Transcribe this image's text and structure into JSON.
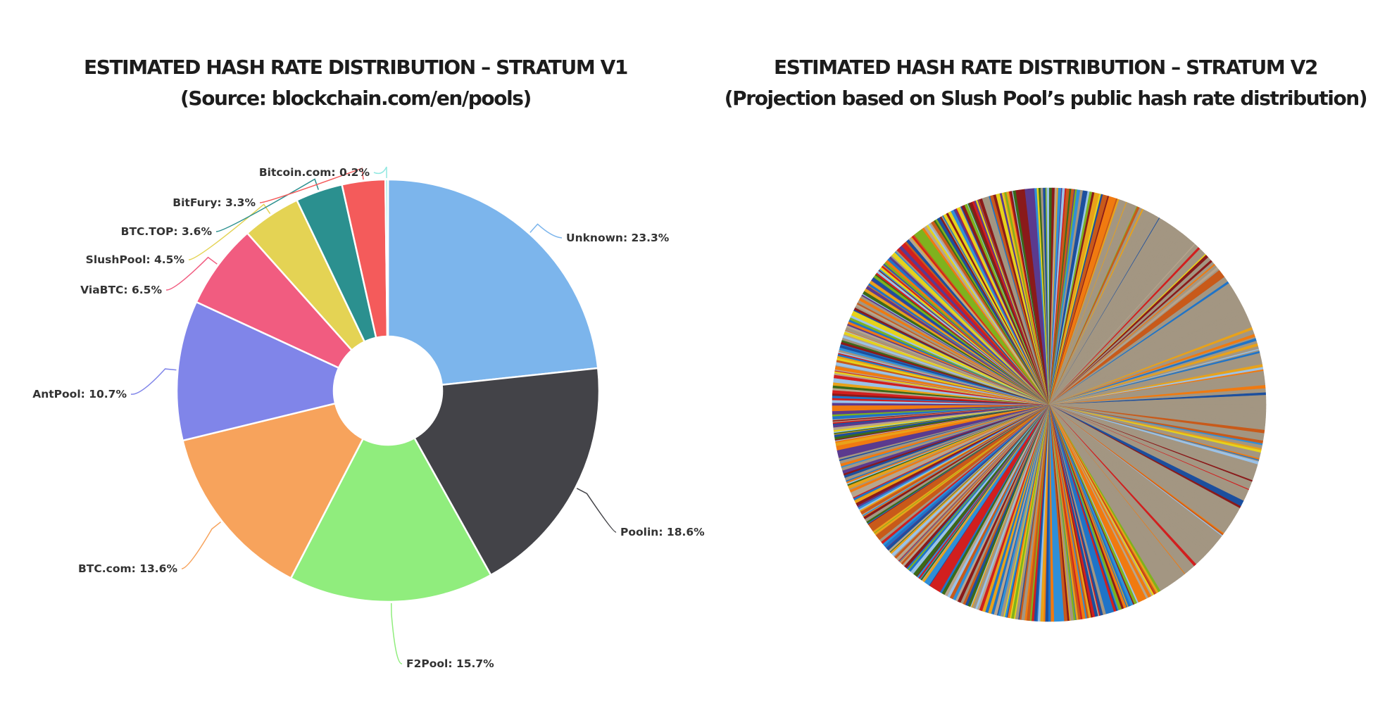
{
  "chart_data": [
    {
      "type": "pie",
      "donut": true,
      "title": "ESTIMATED HASH RATE DISTRIBUTION – STRATUM V1",
      "subtitle": "(Source: blockchain.com/en/pools)",
      "slices": [
        {
          "label": "Unknown: 23.3%",
          "name": "Unknown",
          "value": 23.3,
          "color": "#7cb5ec"
        },
        {
          "label": "Poolin: 18.6%",
          "name": "Poolin",
          "value": 18.6,
          "color": "#434348"
        },
        {
          "label": "F2Pool: 15.7%",
          "name": "F2Pool",
          "value": 15.7,
          "color": "#90ed7d"
        },
        {
          "label": "BTC.com: 13.6%",
          "name": "BTC.com",
          "value": 13.6,
          "color": "#f7a35c"
        },
        {
          "label": "AntPool: 10.7%",
          "name": "AntPool",
          "value": 10.7,
          "color": "#8085e9"
        },
        {
          "label": "ViaBTC: 6.5%",
          "name": "ViaBTC",
          "value": 6.5,
          "color": "#f15c80"
        },
        {
          "label": "SlushPool: 4.5%",
          "name": "SlushPool",
          "value": 4.5,
          "color": "#e4d354"
        },
        {
          "label": "BTC.TOP: 3.6%",
          "name": "BTC.TOP",
          "value": 3.6,
          "color": "#2b908f"
        },
        {
          "label": "BitFury: 3.3%",
          "name": "BitFury",
          "value": 3.3,
          "color": "#f45b5b"
        },
        {
          "label": "Bitcoin.com: 0.2%",
          "name": "Bitcoin.com",
          "value": 0.2,
          "color": "#91e8e1"
        }
      ]
    },
    {
      "type": "pie",
      "donut": false,
      "title": "ESTIMATED HASH RATE DISTRIBUTION – STRATUM V2",
      "subtitle": "(Projection based on Slush Pool’s public hash rate distribution)",
      "slice_count": 600,
      "palette": [
        "#a39682",
        "#1f74c8",
        "#e8a21a",
        "#7fb21e",
        "#d11f1f",
        "#f07a10",
        "#2f8fd8",
        "#5b3a8e",
        "#e6d21c",
        "#3a6a1a",
        "#9ac2e8",
        "#c85a1a",
        "#8a1a1a",
        "#1c4f9e",
        "#b7a58e"
      ],
      "neutral_color": "#a39682"
    }
  ]
}
